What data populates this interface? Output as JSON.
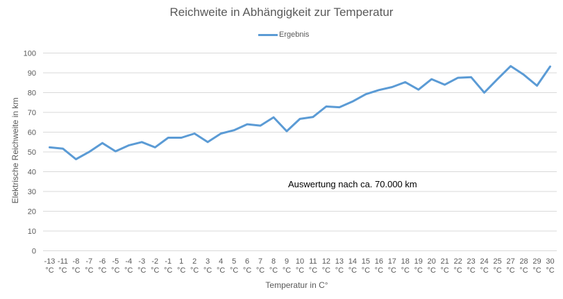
{
  "chart_data": {
    "type": "line",
    "title": "Reichweite in Abhängigkeit zur Temperatur",
    "xlabel": "Temperatur in C°",
    "ylabel": "Elektrische Reichweite in km",
    "ylim": [
      0,
      100
    ],
    "yticks": [
      0,
      10,
      20,
      30,
      40,
      50,
      60,
      70,
      80,
      90,
      100
    ],
    "grid": true,
    "legend_position": "top",
    "annotation": "Auswertung nach ca. 70.000 km",
    "categories": [
      "-13 °C",
      "-11 °C",
      "-8 °C",
      "-7 °C",
      "-6 °C",
      "-5 °C",
      "-4 °C",
      "-3 °C",
      "-2 °C",
      "-1 °C",
      "1 °C",
      "2 °C",
      "3 °C",
      "4 °C",
      "5 °C",
      "6 °C",
      "7 °C",
      "8 °C",
      "9 °C",
      "10 °C",
      "11 °C",
      "12 °C",
      "13 °C",
      "14 °C",
      "15 °C",
      "16 °C",
      "17 °C",
      "18 °C",
      "19 °C",
      "20 °C",
      "21 °C",
      "22 °C",
      "23 °C",
      "24 °C",
      "25 °C",
      "27 °C",
      "28 °C",
      "29 °C",
      "30 °C"
    ],
    "series": [
      {
        "name": "Ergebnis",
        "color": "#5b9bd5",
        "values": [
          52.3,
          51.7,
          46.3,
          50.0,
          54.5,
          50.3,
          53.3,
          55.0,
          52.3,
          57.2,
          57.2,
          59.3,
          55.0,
          59.3,
          61.0,
          64.0,
          63.3,
          67.5,
          60.5,
          66.7,
          67.7,
          73.0,
          72.6,
          75.5,
          79.2,
          81.3,
          82.8,
          85.3,
          81.5,
          86.8,
          84.0,
          87.5,
          87.8,
          80.0,
          86.8,
          93.4,
          89.0,
          83.5,
          93.2
        ]
      }
    ]
  },
  "labels": {
    "title": "Reichweite in Abhängigkeit zur Temperatur",
    "legend": "Ergebnis",
    "xlabel": "Temperatur in C°",
    "ylabel": "Elektrische Reichweite in km",
    "annotation": "Auswertung nach ca. 70.000 km"
  }
}
